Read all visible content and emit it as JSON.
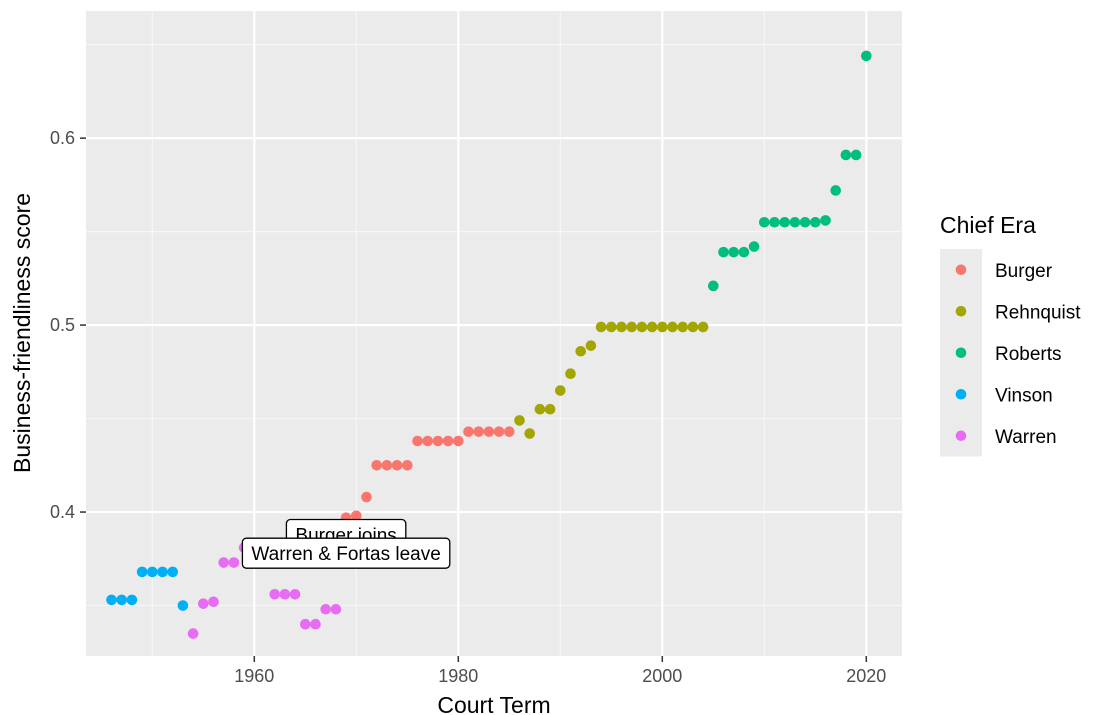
{
  "chart_data": {
    "type": "scatter",
    "title": "",
    "xlabel": "Court Term",
    "ylabel": "Business-friendliness score",
    "xlim": [
      1943.5,
      2023.5
    ],
    "ylim": [
      0.323,
      0.668
    ],
    "x_ticks": [
      {
        "value": 1960,
        "label": "1960"
      },
      {
        "value": 1980,
        "label": "1980"
      },
      {
        "value": 2000,
        "label": "2000"
      },
      {
        "value": 2020,
        "label": "2020"
      }
    ],
    "y_ticks": [
      {
        "value": 0.4,
        "label": "0.4"
      },
      {
        "value": 0.5,
        "label": "0.5"
      },
      {
        "value": 0.6,
        "label": "0.6"
      }
    ],
    "grid": true,
    "legend": {
      "title": "Chief Era",
      "position": "right"
    },
    "series": [
      {
        "name": "Burger",
        "color": "#F8766D",
        "points": [
          [
            1969,
            0.397
          ],
          [
            1970,
            0.398
          ],
          [
            1971,
            0.408
          ],
          [
            1972,
            0.425
          ],
          [
            1973,
            0.425
          ],
          [
            1974,
            0.425
          ],
          [
            1975,
            0.425
          ],
          [
            1976,
            0.438
          ],
          [
            1977,
            0.438
          ],
          [
            1978,
            0.438
          ],
          [
            1979,
            0.438
          ],
          [
            1980,
            0.438
          ],
          [
            1981,
            0.443
          ],
          [
            1982,
            0.443
          ],
          [
            1983,
            0.443
          ],
          [
            1984,
            0.443
          ],
          [
            1985,
            0.443
          ]
        ]
      },
      {
        "name": "Rehnquist",
        "color": "#A3A500",
        "points": [
          [
            1986,
            0.449
          ],
          [
            1987,
            0.442
          ],
          [
            1988,
            0.455
          ],
          [
            1989,
            0.455
          ],
          [
            1990,
            0.465
          ],
          [
            1991,
            0.474
          ],
          [
            1992,
            0.486
          ],
          [
            1993,
            0.489
          ],
          [
            1994,
            0.499
          ],
          [
            1995,
            0.499
          ],
          [
            1996,
            0.499
          ],
          [
            1997,
            0.499
          ],
          [
            1998,
            0.499
          ],
          [
            1999,
            0.499
          ],
          [
            2000,
            0.499
          ],
          [
            2001,
            0.499
          ],
          [
            2002,
            0.499
          ],
          [
            2003,
            0.499
          ],
          [
            2004,
            0.499
          ]
        ]
      },
      {
        "name": "Roberts",
        "color": "#00BF7D",
        "points": [
          [
            2005,
            0.521
          ],
          [
            2006,
            0.539
          ],
          [
            2007,
            0.539
          ],
          [
            2008,
            0.539
          ],
          [
            2009,
            0.542
          ],
          [
            2010,
            0.555
          ],
          [
            2011,
            0.555
          ],
          [
            2012,
            0.555
          ],
          [
            2013,
            0.555
          ],
          [
            2014,
            0.555
          ],
          [
            2015,
            0.555
          ],
          [
            2016,
            0.556
          ],
          [
            2017,
            0.572
          ],
          [
            2018,
            0.591
          ],
          [
            2019,
            0.591
          ],
          [
            2020,
            0.644
          ]
        ]
      },
      {
        "name": "Vinson",
        "color": "#00B0F6",
        "points": [
          [
            1946,
            0.353
          ],
          [
            1947,
            0.353
          ],
          [
            1948,
            0.353
          ],
          [
            1949,
            0.368
          ],
          [
            1950,
            0.368
          ],
          [
            1951,
            0.368
          ],
          [
            1952,
            0.368
          ],
          [
            1953,
            0.35
          ]
        ]
      },
      {
        "name": "Warren",
        "color": "#E76BF3",
        "points": [
          [
            1954,
            0.335
          ],
          [
            1955,
            0.351
          ],
          [
            1956,
            0.352
          ],
          [
            1957,
            0.373
          ],
          [
            1958,
            0.373
          ],
          [
            1959,
            0.381
          ],
          [
            1960,
            0.381
          ],
          [
            1961,
            0.381
          ],
          [
            1962,
            0.356
          ],
          [
            1963,
            0.356
          ],
          [
            1964,
            0.356
          ],
          [
            1965,
            0.34
          ],
          [
            1966,
            0.34
          ],
          [
            1967,
            0.348
          ],
          [
            1968,
            0.348
          ]
        ]
      }
    ],
    "annotations": [
      {
        "text": "Burger joins",
        "x": 1969,
        "y": 0.388
      },
      {
        "text": "Warren & Fortas leave",
        "x": 1969,
        "y": 0.378
      }
    ]
  }
}
